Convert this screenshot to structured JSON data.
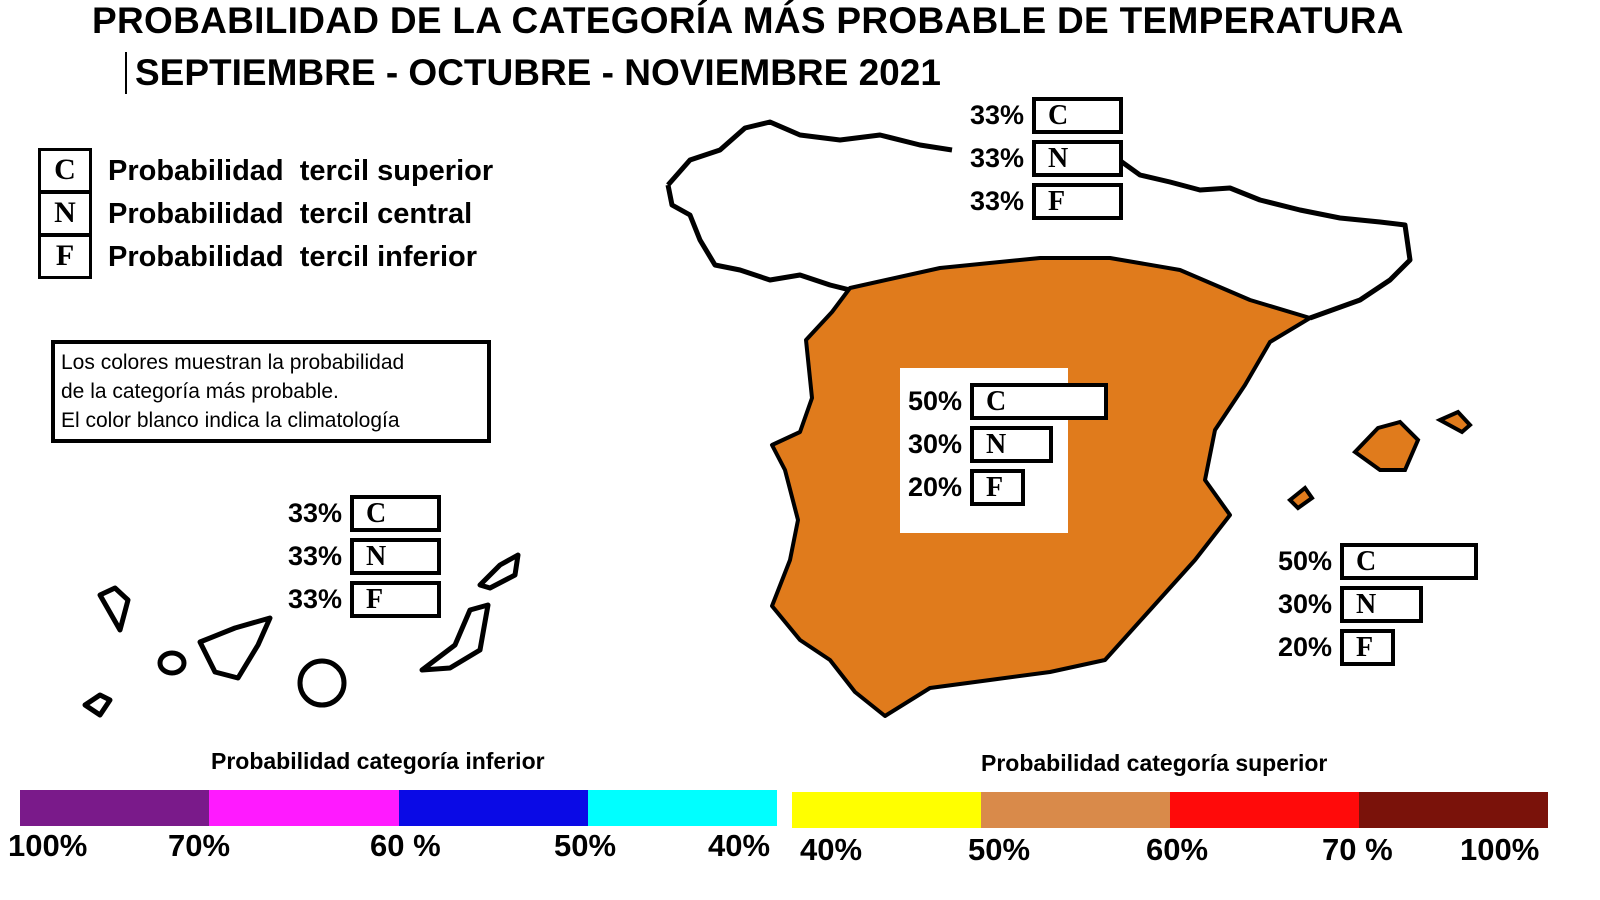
{
  "title": "PROBABILIDAD DE LA CATEGORÍA MÁS PROBABLE DE TEMPERATURA",
  "subtitle": "SEPTIEMBRE - OCTUBRE - NOVIEMBRE 2021",
  "legend": [
    {
      "letter": "C",
      "label": "Probabilidad  tercil superior"
    },
    {
      "letter": "N",
      "label": "Probabilidad  tercil central"
    },
    {
      "letter": "F",
      "label": "Probabilidad  tercil inferior"
    }
  ],
  "note": [
    "Los colores muestran la probabilidad",
    "de la categoría más probable.",
    "El color blanco indica la climatología"
  ],
  "regions": [
    {
      "name": "peninsula-norte",
      "color": "#ffffff",
      "probs": [
        {
          "letter": "C",
          "pct": "33%",
          "value": 33
        },
        {
          "letter": "N",
          "pct": "33%",
          "value": 33
        },
        {
          "letter": "F",
          "pct": "33%",
          "value": 33
        }
      ]
    },
    {
      "name": "peninsula",
      "color": "#e07b1c",
      "probs": [
        {
          "letter": "C",
          "pct": "50%",
          "value": 50
        },
        {
          "letter": "N",
          "pct": "30%",
          "value": 30
        },
        {
          "letter": "F",
          "pct": "20%",
          "value": 20
        }
      ]
    },
    {
      "name": "baleares",
      "color": "#e07b1c",
      "probs": [
        {
          "letter": "C",
          "pct": "50%",
          "value": 50
        },
        {
          "letter": "N",
          "pct": "30%",
          "value": 30
        },
        {
          "letter": "F",
          "pct": "20%",
          "value": 20
        }
      ]
    },
    {
      "name": "canarias",
      "color": "#ffffff",
      "probs": [
        {
          "letter": "C",
          "pct": "33%",
          "value": 33
        },
        {
          "letter": "N",
          "pct": "33%",
          "value": 33
        },
        {
          "letter": "F",
          "pct": "33%",
          "value": 33
        }
      ]
    }
  ],
  "scale_lower": {
    "title": "Probabilidad categoría inferior",
    "colors": [
      "#7a1a8a",
      "#ff1aff",
      "#0a0ae6",
      "#00ffff"
    ],
    "ticks": [
      "100%",
      "70%",
      "60 %",
      "50%",
      "40%"
    ]
  },
  "scale_upper": {
    "title": "Probabilidad categoría superior",
    "colors": [
      "#ffff00",
      "#d98a4a",
      "#ff0a0a",
      "#7a120a"
    ],
    "ticks": [
      "40%",
      "50%",
      "60%",
      "70 %",
      "100%"
    ]
  }
}
